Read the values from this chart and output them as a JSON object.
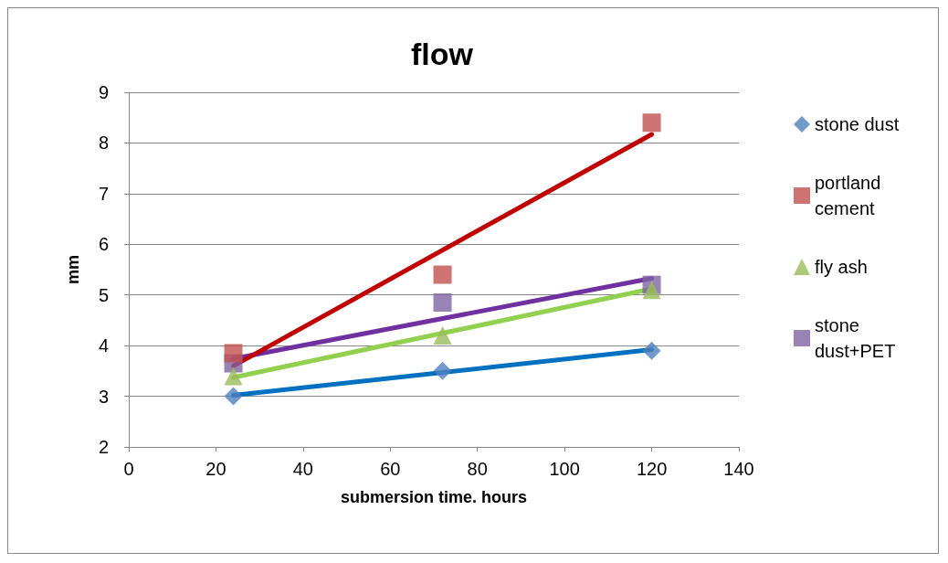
{
  "chart_data": {
    "type": "scatter",
    "title": "flow",
    "xlabel": "submersion time. hours",
    "ylabel": "mm",
    "xlim": [
      0,
      140
    ],
    "xticks": [
      0,
      20,
      40,
      60,
      80,
      100,
      120,
      140
    ],
    "ylim": [
      2,
      9
    ],
    "yticks": [
      2,
      3,
      4,
      5,
      6,
      7,
      8,
      9
    ],
    "grid": "y",
    "legend": "right",
    "series": [
      {
        "name": "stone dust",
        "color": "#4f81bd",
        "marker": "diamond",
        "x": [
          24,
          72,
          120
        ],
        "values": [
          3.0,
          3.5,
          3.9
        ]
      },
      {
        "name": "portland cement",
        "color": "#c0504d",
        "marker": "square",
        "x": [
          24,
          72,
          120
        ],
        "values": [
          3.85,
          5.4,
          8.4
        ]
      },
      {
        "name": "fly ash",
        "color": "#9bbb59",
        "marker": "triangle",
        "x": [
          24,
          72,
          120
        ],
        "values": [
          3.4,
          4.2,
          5.1
        ]
      },
      {
        "name": "stone dust+PET",
        "color": "#8064a2",
        "marker": "square",
        "x": [
          24,
          72,
          120
        ],
        "values": [
          3.65,
          4.85,
          5.2
        ]
      },
      {
        "type": "line",
        "color": "#0070c0",
        "marker": "none",
        "x": [
          24,
          120
        ],
        "values": [
          3.02,
          3.92
        ]
      },
      {
        "type": "line",
        "color": "#92d050",
        "marker": "none",
        "x": [
          24,
          120
        ],
        "values": [
          3.37,
          5.12
        ]
      },
      {
        "type": "line",
        "color": "#7030a0",
        "marker": "none",
        "x": [
          24,
          120
        ],
        "values": [
          3.74,
          5.33
        ]
      },
      {
        "type": "line",
        "color": "#c00000",
        "marker": "none",
        "x": [
          24,
          120
        ],
        "values": [
          3.6,
          8.17
        ]
      }
    ]
  }
}
